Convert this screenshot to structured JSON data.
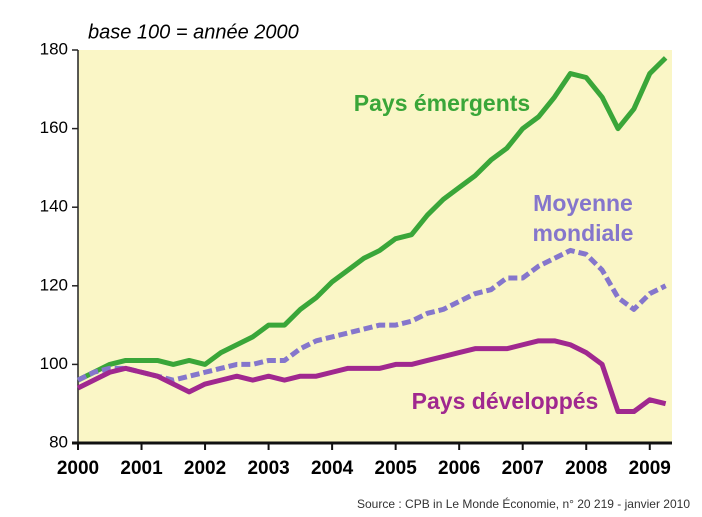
{
  "chart_data": {
    "type": "line",
    "subtitle": "base 100 = année 2000",
    "source": "Source : CPB in Le Monde Économie, n° 20 219 - janvier 2010",
    "x": [
      2000,
      2000.25,
      2000.5,
      2000.75,
      2001,
      2001.25,
      2001.5,
      2001.75,
      2002,
      2002.25,
      2002.5,
      2002.75,
      2003,
      2003.25,
      2003.5,
      2003.75,
      2004,
      2004.25,
      2004.5,
      2004.75,
      2005,
      2005.25,
      2005.5,
      2005.75,
      2006,
      2006.25,
      2006.5,
      2006.75,
      2007,
      2007.25,
      2007.5,
      2007.75,
      2008,
      2008.25,
      2008.5,
      2008.75,
      2009,
      2009.25
    ],
    "series": [
      {
        "name": "Pays émergents",
        "color": "#3aa639",
        "dashed": false,
        "values": [
          96,
          98,
          100,
          101,
          101,
          101,
          100,
          101,
          100,
          103,
          105,
          107,
          110,
          110,
          114,
          117,
          121,
          124,
          127,
          129,
          132,
          133,
          138,
          142,
          145,
          148,
          152,
          155,
          160,
          163,
          168,
          174,
          173,
          168,
          160,
          165,
          174,
          178
        ]
      },
      {
        "name": "Moyenne mondiale",
        "color": "#8576cc",
        "dashed": true,
        "values": [
          96,
          98,
          99,
          99,
          98,
          97,
          96,
          97,
          98,
          99,
          100,
          100,
          101,
          101,
          104,
          106,
          107,
          108,
          109,
          110,
          110,
          111,
          113,
          114,
          116,
          118,
          119,
          122,
          122,
          125,
          127,
          129,
          128,
          124,
          117,
          114,
          118,
          120
        ]
      },
      {
        "name": "Pays développés",
        "color": "#a0288f",
        "dashed": false,
        "values": [
          94,
          96,
          98,
          99,
          98,
          97,
          95,
          93,
          95,
          96,
          97,
          96,
          97,
          96,
          97,
          97,
          98,
          99,
          99,
          99,
          100,
          100,
          101,
          102,
          103,
          104,
          104,
          104,
          105,
          106,
          106,
          105,
          103,
          100,
          88,
          88,
          91,
          90
        ]
      }
    ],
    "xlim": [
      2000,
      2009.35
    ],
    "xticks": [
      2000,
      2001,
      2002,
      2003,
      2004,
      2005,
      2006,
      2007,
      2008,
      2009
    ],
    "ylim": [
      80,
      180
    ],
    "yticks": [
      80,
      100,
      120,
      140,
      160,
      180
    ],
    "plot_background": "#faf6c6"
  }
}
